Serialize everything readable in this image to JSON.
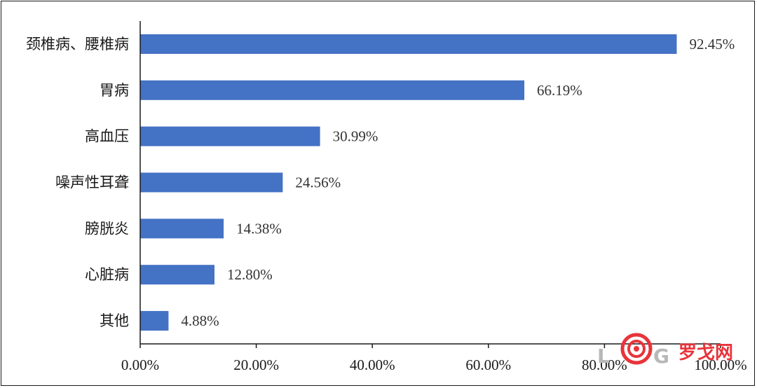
{
  "chart_data": {
    "type": "bar",
    "orientation": "horizontal",
    "categories": [
      "颈椎病、腰椎病",
      "胃病",
      "高血压",
      "噪声性耳聋",
      "膀胱炎",
      "心脏病",
      "其他"
    ],
    "values": [
      92.45,
      66.19,
      30.99,
      24.56,
      14.38,
      12.8,
      4.88
    ],
    "value_labels": [
      "92.45%",
      "66.19%",
      "30.99%",
      "24.56%",
      "14.38%",
      "12.80%",
      "4.88%"
    ],
    "xlim": [
      0,
      100
    ],
    "x_ticks": [
      0,
      20,
      40,
      60,
      80,
      100
    ],
    "x_tick_labels": [
      "0.00%",
      "20.00%",
      "40.00%",
      "60.00%",
      "80.00%",
      "100.00%"
    ],
    "title": "",
    "xlabel": "",
    "ylabel": "",
    "grid": false,
    "bar_color": "#4472C4"
  },
  "watermark": {
    "logo_letters": "LOG",
    "text": "罗戈网",
    "color_primary": "#e8343a",
    "color_secondary": "#b0b0b0"
  }
}
